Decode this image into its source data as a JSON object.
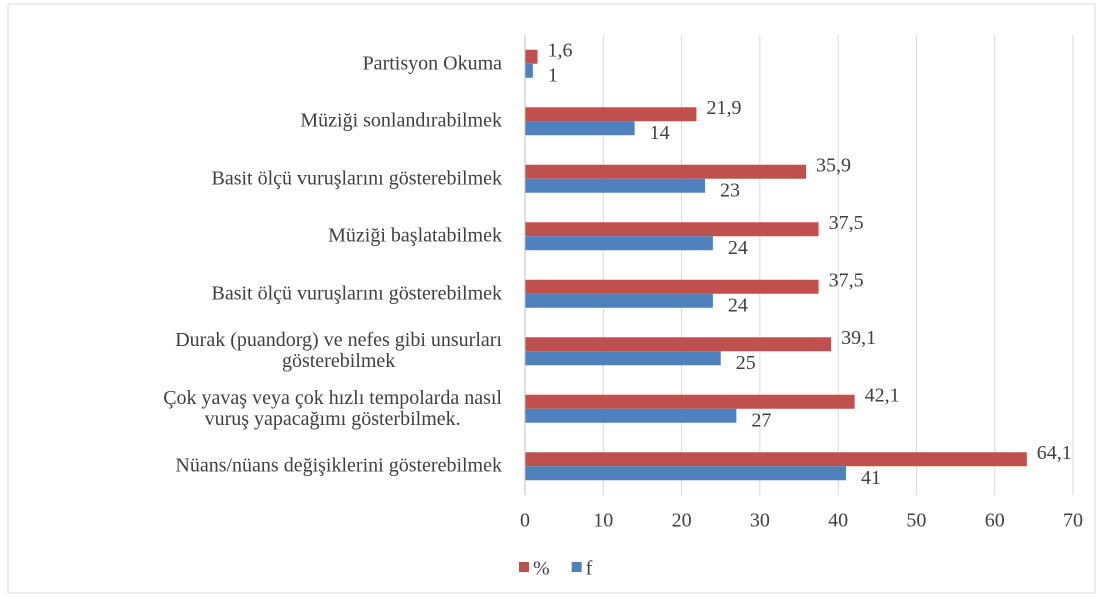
{
  "chart_data": {
    "type": "bar",
    "orientation": "horizontal",
    "categories": [
      "Partisyon Okuma",
      "Müziği sonlandırabilmek",
      "Basit ölçü vuruşlarını gösterebilmek",
      "Müziği başlatabilmek",
      "Basit ölçü vuruşlarını gösterebilmek",
      "Durak (puandorg) ve nefes gibi unsurları\ngösterebilmek",
      "Çok yavaş veya çok hızlı tempolarda nasıl\nvuruş yapacağımı gösterbilmek.",
      "Nüans/nüans değişiklerini gösterebilmek"
    ],
    "series": [
      {
        "name": "%",
        "color": "#c0504d",
        "values": [
          1.6,
          21.9,
          35.9,
          37.5,
          37.5,
          39.1,
          42.1,
          64.1
        ],
        "value_labels": [
          "1,6",
          "21,9",
          "35,9",
          "37,5",
          "37,5",
          "39,1",
          "42,1",
          "64,1"
        ]
      },
      {
        "name": "f",
        "color": "#4f81bd",
        "values": [
          1,
          14,
          23,
          24,
          24,
          25,
          27,
          41
        ]
      }
    ],
    "xlim": [
      0,
      70
    ],
    "xticks": [
      0,
      10,
      20,
      30,
      40,
      50,
      60,
      70
    ],
    "grid": true,
    "legend": "bottom"
  }
}
